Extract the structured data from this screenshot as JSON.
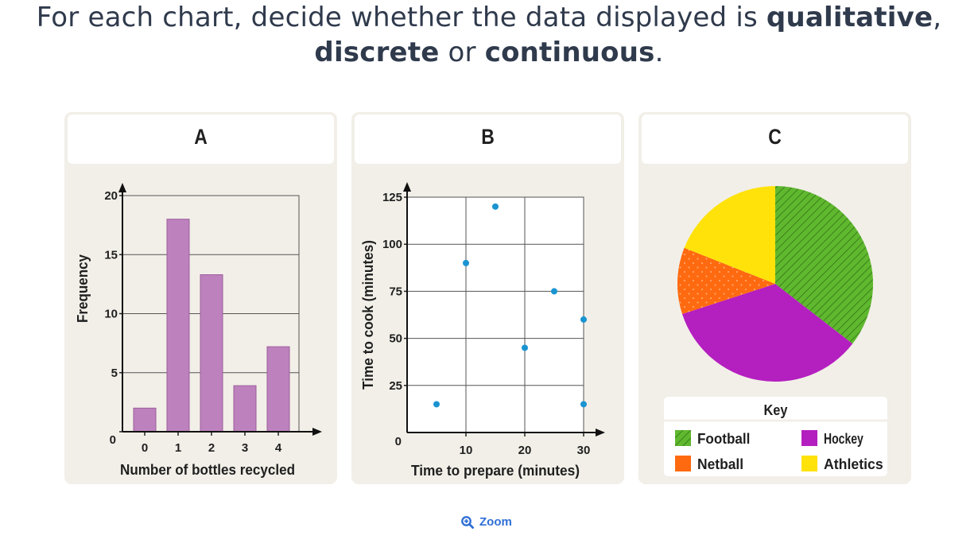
{
  "header": {
    "prefix": "For each chart, decide whether the data displayed is ",
    "term1": "qualitative",
    "sep1": ",",
    "term2": "discrete",
    "sep2": " or ",
    "term3": "continuous",
    "suffix": "."
  },
  "zoom_label": "Zoom",
  "chart_data": [
    {
      "id": "A",
      "type": "bar",
      "xlabel": "Number of bottles recycled",
      "ylabel": "Frequency",
      "categories": [
        "0",
        "1",
        "2",
        "3",
        "4"
      ],
      "values": [
        2,
        18,
        13.3,
        3.9,
        7.2
      ],
      "ylim": [
        0,
        20
      ],
      "yticks": [
        0,
        5,
        10,
        15,
        20
      ],
      "grid": true,
      "color": "#bd82bd"
    },
    {
      "id": "B",
      "type": "scatter",
      "xlabel": "Time to prepare (minutes)",
      "ylabel": "Time to cook (minutes)",
      "xlim": [
        0,
        30
      ],
      "ylim": [
        0,
        125
      ],
      "xticks": [
        0,
        10,
        20,
        30
      ],
      "yticks": [
        0,
        25,
        50,
        75,
        100,
        125
      ],
      "points": [
        {
          "x": 5,
          "y": 15
        },
        {
          "x": 10,
          "y": 90
        },
        {
          "x": 15,
          "y": 120
        },
        {
          "x": 20,
          "y": 45
        },
        {
          "x": 25,
          "y": 75
        },
        {
          "x": 30,
          "y": 60
        },
        {
          "x": 30,
          "y": 15
        }
      ],
      "grid": true,
      "color": "#1a94d1"
    },
    {
      "id": "C",
      "type": "pie",
      "legend_title": "Key",
      "slices": [
        {
          "label": "Football",
          "value": 35.5,
          "color": "#5fb82e",
          "pattern": "hatch"
        },
        {
          "label": "Hockey",
          "value": 34.5,
          "color": "#b41fc0",
          "pattern": "none"
        },
        {
          "label": "Netball",
          "value": 11,
          "color": "#ff6a10",
          "pattern": "dots"
        },
        {
          "label": "Athletics",
          "value": 19,
          "color": "#ffe20a",
          "pattern": "none"
        }
      ],
      "legend_order": [
        0,
        1,
        2,
        3
      ],
      "legend_placement": "bottom"
    }
  ]
}
